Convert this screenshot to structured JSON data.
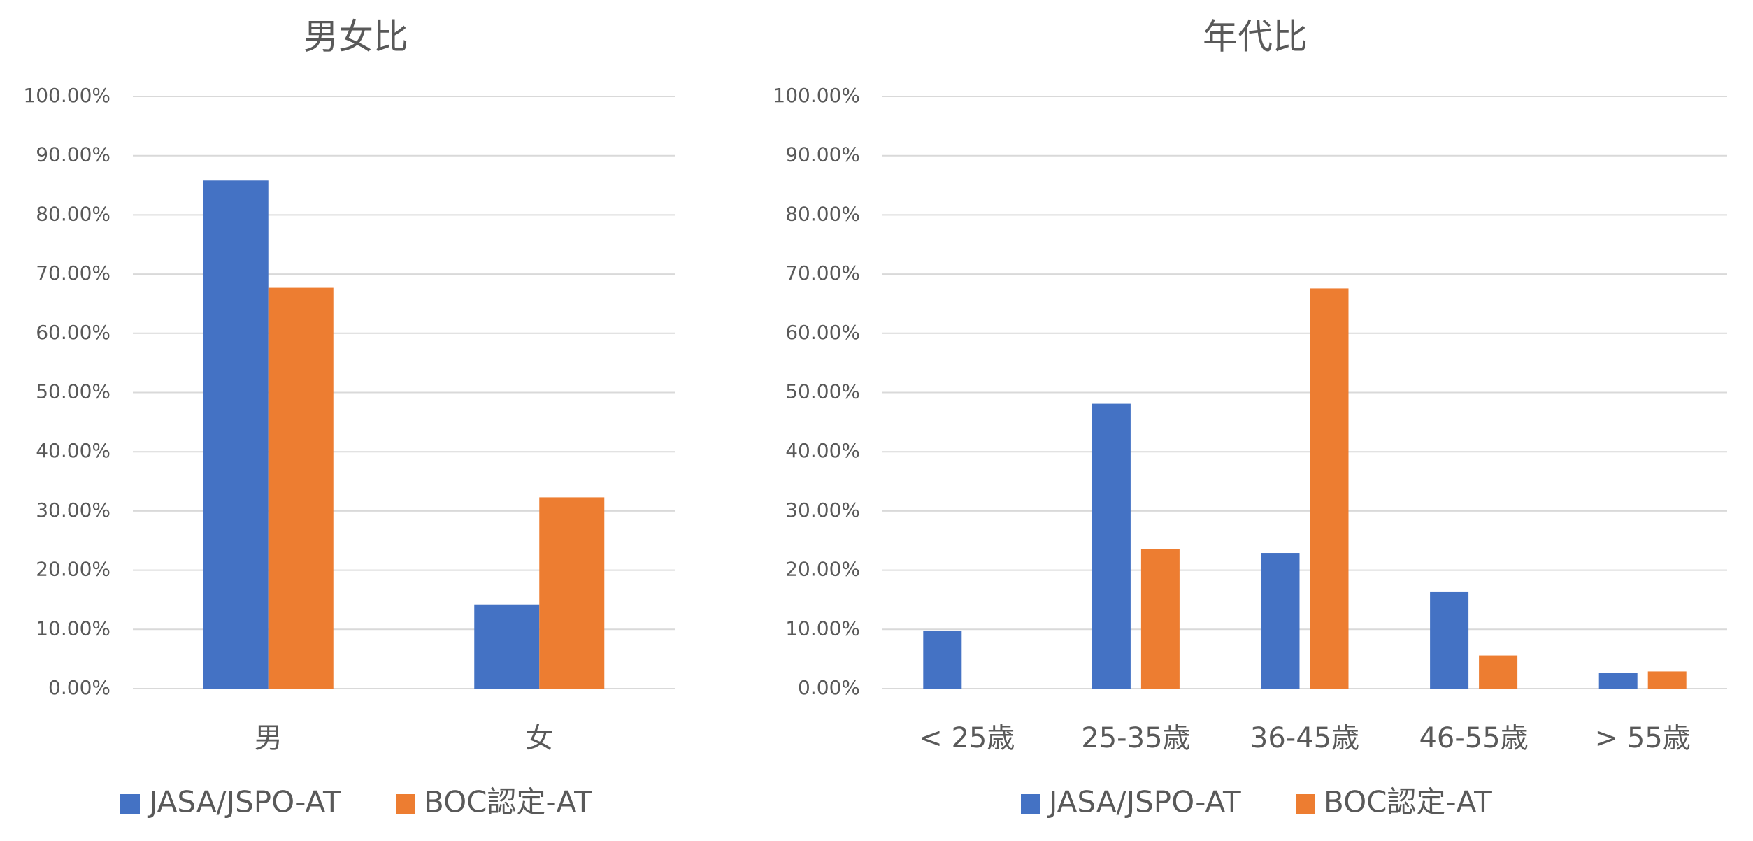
{
  "chart_data": [
    {
      "type": "bar",
      "title": "男女比",
      "categories": [
        "男",
        "女"
      ],
      "series": [
        {
          "name": "JASA/JSPO-AT",
          "color": "#4472C4",
          "values": [
            85.8,
            14.2
          ]
        },
        {
          "name": "BOC認定-AT",
          "color": "#ED7D31",
          "values": [
            67.7,
            32.3
          ]
        }
      ],
      "yticks": [
        "0.00%",
        "10.00%",
        "20.00%",
        "30.00%",
        "40.00%",
        "50.00%",
        "60.00%",
        "70.00%",
        "80.00%",
        "90.00%",
        "100.00%"
      ],
      "ylim": [
        0,
        100
      ],
      "grid": true,
      "legend_position": "bottom"
    },
    {
      "type": "bar",
      "title": "年代比",
      "categories": [
        "< 25歳",
        "25-35歳",
        "36-45歳",
        "46-55歳",
        "> 55歳"
      ],
      "series": [
        {
          "name": "JASA/JSPO-AT",
          "color": "#4472C4",
          "values": [
            9.8,
            48.1,
            22.9,
            16.3,
            2.7
          ]
        },
        {
          "name": "BOC認定-AT",
          "color": "#ED7D31",
          "values": [
            0,
            23.5,
            67.6,
            5.6,
            2.9
          ]
        }
      ],
      "yticks": [
        "0.00%",
        "10.00%",
        "20.00%",
        "30.00%",
        "40.00%",
        "50.00%",
        "60.00%",
        "70.00%",
        "80.00%",
        "90.00%",
        "100.00%"
      ],
      "ylim": [
        0,
        100
      ],
      "grid": true,
      "legend_position": "bottom"
    }
  ]
}
